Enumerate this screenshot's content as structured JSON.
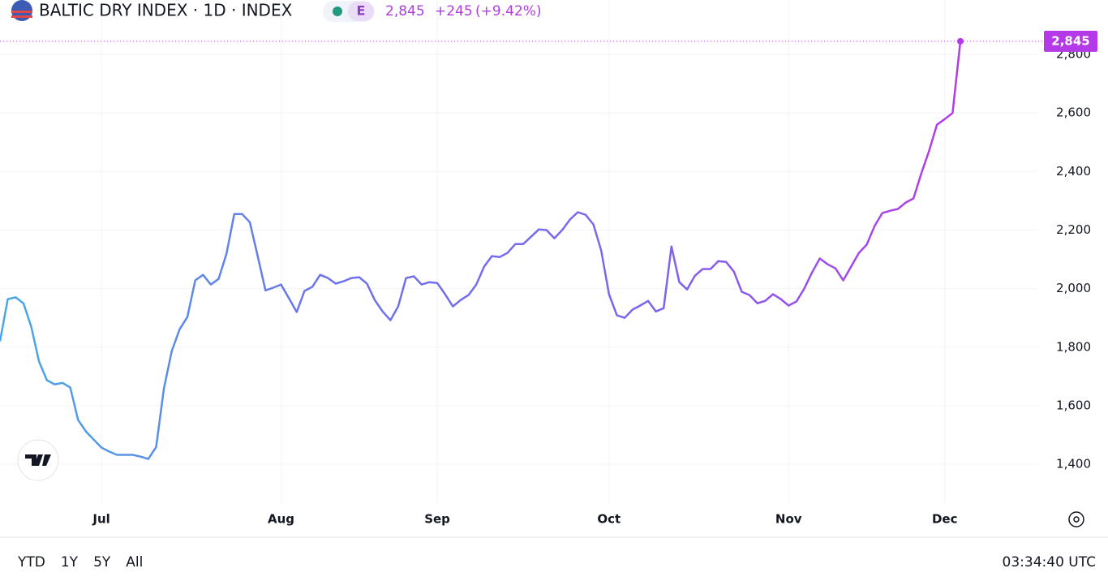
{
  "chart_data": {
    "type": "line",
    "title": "BALTIC DRY INDEX · 1D · INDEX",
    "badge": "E",
    "last_price_label": "2,845",
    "change": "+245",
    "change_pct": "(+9.42%)",
    "categories": [
      null,
      null,
      null,
      null,
      null,
      null,
      null,
      null,
      null,
      null,
      null,
      null,
      null,
      "Jul",
      null,
      null,
      null,
      null,
      null,
      null,
      null,
      null,
      null,
      null,
      null,
      null,
      null,
      null,
      null,
      null,
      null,
      null,
      null,
      null,
      null,
      null,
      "Aug",
      null,
      null,
      null,
      null,
      null,
      null,
      null,
      null,
      null,
      null,
      null,
      null,
      null,
      null,
      null,
      null,
      null,
      null,
      null,
      "Sep",
      null,
      null,
      null,
      null,
      null,
      null,
      null,
      null,
      null,
      null,
      null,
      null,
      null,
      null,
      null,
      null,
      null,
      null,
      null,
      null,
      null,
      "Oct",
      null,
      null,
      null,
      null,
      null,
      null,
      null,
      null,
      null,
      null,
      null,
      null,
      null,
      null,
      null,
      null,
      null,
      null,
      null,
      null,
      null,
      null,
      "Nov",
      null,
      null,
      null,
      null,
      null,
      null,
      null,
      null,
      null,
      null,
      null,
      null,
      null,
      null,
      null,
      null,
      null,
      null,
      null,
      "Dec",
      null,
      null
    ],
    "values": [
      1820,
      1964,
      1970,
      1950,
      1870,
      1751,
      1687,
      1673,
      1678,
      1662,
      1551,
      1512,
      1484,
      1457,
      1443,
      1432,
      1432,
      1432,
      1426,
      1418,
      1459,
      1659,
      1787,
      1861,
      1903,
      2028,
      2047,
      2014,
      2033,
      2119,
      2255,
      2255,
      2227,
      2111,
      1994,
      2003,
      2014,
      1967,
      1920,
      1992,
      2006,
      2047,
      2036,
      2017,
      2025,
      2036,
      2039,
      2017,
      1961,
      1922,
      1892,
      1939,
      2036,
      2042,
      2014,
      2022,
      2019,
      1981,
      1939,
      1961,
      1978,
      2014,
      2075,
      2111,
      2108,
      2122,
      2152,
      2152,
      2177,
      2202,
      2200,
      2172,
      2200,
      2236,
      2261,
      2252,
      2219,
      2130,
      1981,
      1909,
      1900,
      1928,
      1942,
      1958,
      1922,
      1933,
      2144,
      2022,
      1997,
      2044,
      2067,
      2067,
      2094,
      2091,
      2058,
      1989,
      1978,
      1950,
      1958,
      1981,
      1964,
      1942,
      1956,
      2000,
      2055,
      2103,
      2083,
      2069,
      2028,
      2075,
      2122,
      2150,
      2213,
      2258,
      2266,
      2272,
      2294,
      2308,
      2394,
      2471,
      2560,
      2579,
      2600,
      2845
    ],
    "color_stops": [
      "#48a9e6",
      "#6c72ee",
      "#7a66ee",
      "#b43ae8"
    ],
    "ylim": [
      1267,
      2986
    ],
    "yticks": [
      {
        "value": 1400,
        "label": "1,400"
      },
      {
        "value": 1600,
        "label": "1,600"
      },
      {
        "value": 1800,
        "label": "1,800"
      },
      {
        "value": 2000,
        "label": "2,000"
      },
      {
        "value": 2200,
        "label": "2,200"
      },
      {
        "value": 2400,
        "label": "2,400"
      },
      {
        "value": 2600,
        "label": "2,600"
      },
      {
        "value": 2800,
        "label": "2,800"
      }
    ],
    "grid": true
  },
  "toolbar": {
    "ranges": [
      "YTD",
      "1Y",
      "5Y",
      "All"
    ],
    "clock": "03:34:40 UTC"
  }
}
